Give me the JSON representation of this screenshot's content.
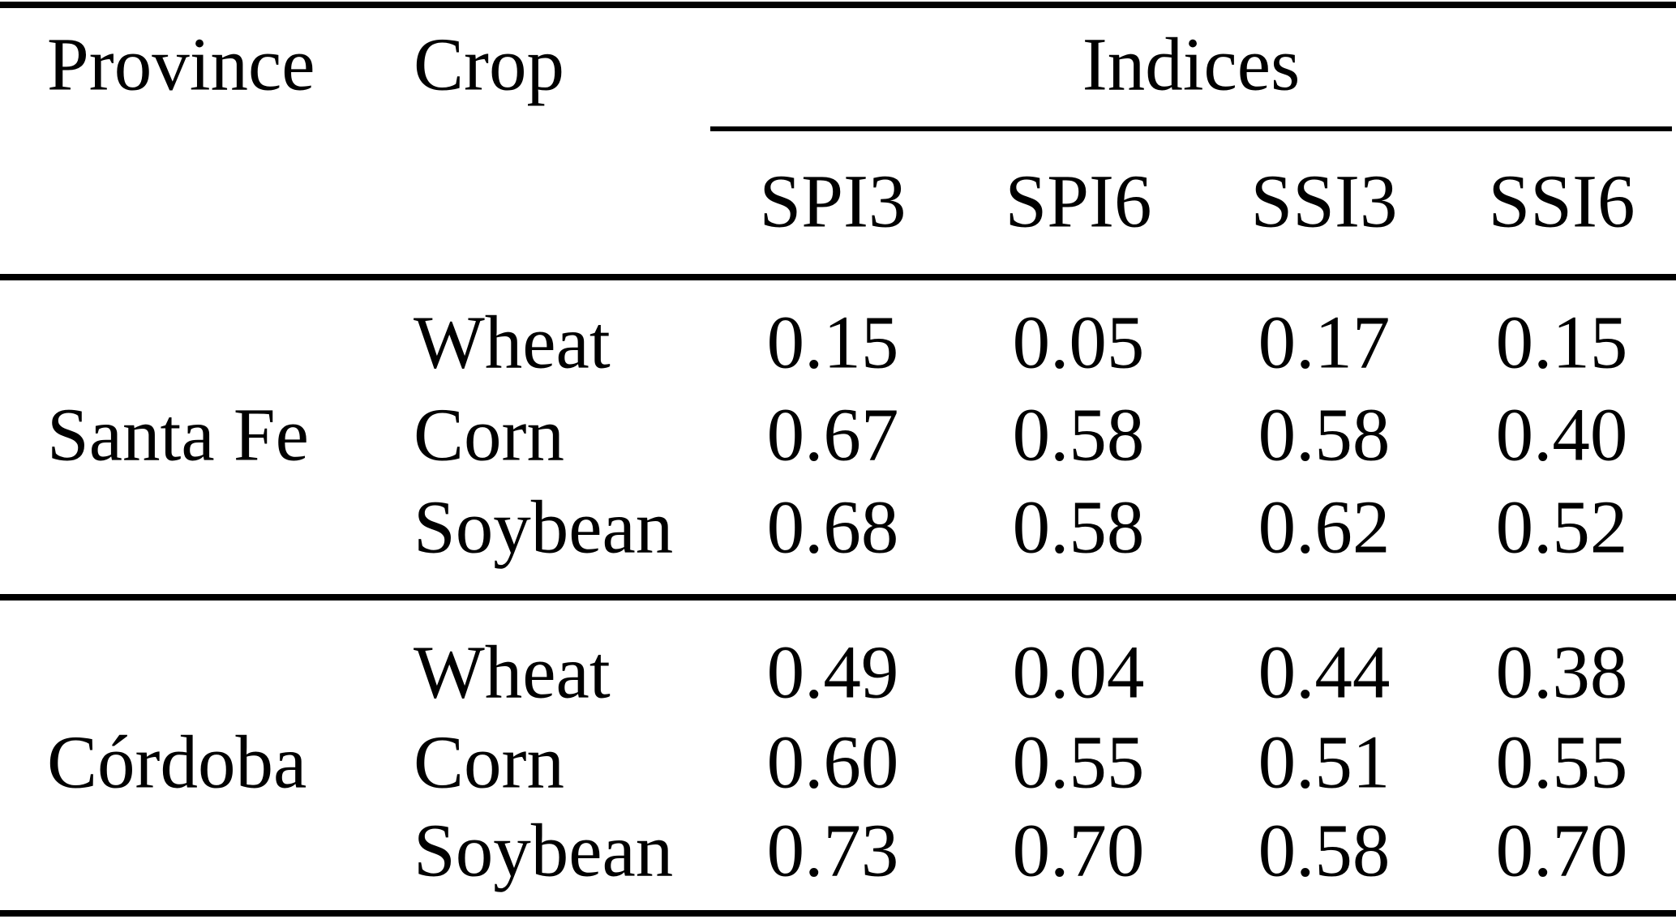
{
  "table": {
    "header": {
      "province": "Province",
      "crop": "Crop",
      "indices_group": "Indices",
      "indices": [
        "SPI3",
        "SPI6",
        "SSI3",
        "SSI6"
      ]
    },
    "sections": [
      {
        "province": "Santa Fe",
        "rows": [
          {
            "crop": "Wheat",
            "values": [
              "0.15",
              "0.05",
              "0.17",
              "0.15"
            ]
          },
          {
            "crop": "Corn",
            "values": [
              "0.67",
              "0.58",
              "0.58",
              "0.40"
            ]
          },
          {
            "crop": "Soybean",
            "values": [
              "0.68",
              "0.58",
              "0.62",
              "0.52"
            ]
          }
        ]
      },
      {
        "province": "Córdoba",
        "rows": [
          {
            "crop": "Wheat",
            "values": [
              "0.49",
              "0.04",
              "0.44",
              "0.38"
            ]
          },
          {
            "crop": "Corn",
            "values": [
              "0.60",
              "0.55",
              "0.51",
              "0.55"
            ]
          },
          {
            "crop": "Soybean",
            "values": [
              "0.73",
              "0.70",
              "0.58",
              "0.70"
            ]
          }
        ]
      }
    ],
    "colors": {
      "background": "#ffffff",
      "text": "#000000",
      "rule": "#000000"
    }
  }
}
